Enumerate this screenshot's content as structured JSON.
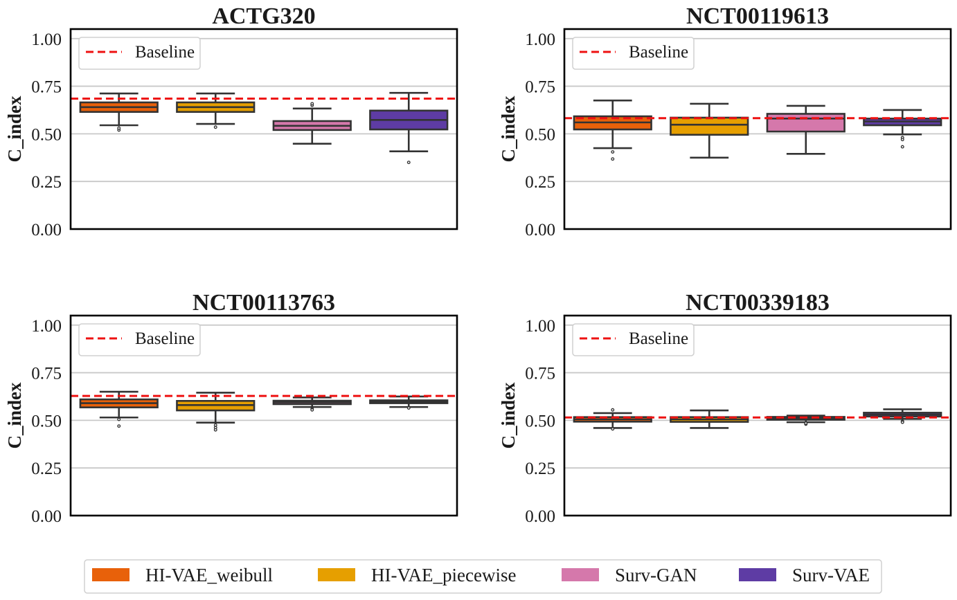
{
  "chart_data": [
    {
      "type": "box",
      "title": "ACTG320",
      "ylabel": "C_index",
      "ylim": [
        0,
        1.05
      ],
      "yticks": [
        "0.00",
        "0.25",
        "0.50",
        "0.75",
        "1.00"
      ],
      "grid": "horizontal",
      "legend": {
        "label": "Baseline",
        "placement": "top-left"
      },
      "baseline": 0.685,
      "boxes": [
        {
          "series": "HI-VAE_weibull",
          "min": 0.545,
          "q1": 0.615,
          "median": 0.64,
          "q3": 0.665,
          "max": 0.712,
          "outliers": [
            0.52,
            0.53
          ]
        },
        {
          "series": "HI-VAE_piecewise",
          "min": 0.552,
          "q1": 0.615,
          "median": 0.64,
          "q3": 0.665,
          "max": 0.712,
          "outliers": [
            0.535
          ]
        },
        {
          "series": "Surv-GAN",
          "min": 0.448,
          "q1": 0.52,
          "median": 0.542,
          "q3": 0.567,
          "max": 0.633,
          "outliers": [
            0.65,
            0.658
          ]
        },
        {
          "series": "Surv-VAE",
          "min": 0.408,
          "q1": 0.523,
          "median": 0.573,
          "q3": 0.622,
          "max": 0.715,
          "outliers": [
            0.35
          ]
        }
      ]
    },
    {
      "type": "box",
      "title": "NCT00119613",
      "ylabel": "C_index",
      "ylim": [
        0,
        1.05
      ],
      "yticks": [
        "0.00",
        "0.25",
        "0.50",
        "0.75",
        "1.00"
      ],
      "grid": "horizontal",
      "legend": {
        "label": "Baseline",
        "placement": "top-left"
      },
      "baseline": 0.582,
      "boxes": [
        {
          "series": "HI-VAE_weibull",
          "min": 0.425,
          "q1": 0.523,
          "median": 0.56,
          "q3": 0.592,
          "max": 0.675,
          "outliers": [
            0.405,
            0.368
          ]
        },
        {
          "series": "HI-VAE_piecewise",
          "min": 0.375,
          "q1": 0.495,
          "median": 0.548,
          "q3": 0.585,
          "max": 0.658,
          "outliers": []
        },
        {
          "series": "Surv-GAN",
          "min": 0.395,
          "q1": 0.512,
          "median": 0.58,
          "q3": 0.605,
          "max": 0.647,
          "outliers": []
        },
        {
          "series": "Surv-VAE",
          "min": 0.497,
          "q1": 0.545,
          "median": 0.565,
          "q3": 0.58,
          "max": 0.625,
          "outliers": [
            0.48,
            0.47,
            0.432
          ]
        }
      ]
    },
    {
      "type": "box",
      "title": "NCT00113763",
      "ylabel": "C_index",
      "ylim": [
        0,
        1.05
      ],
      "yticks": [
        "0.00",
        "0.25",
        "0.50",
        "0.75",
        "1.00"
      ],
      "grid": "horizontal",
      "legend": {
        "label": "Baseline",
        "placement": "top-left"
      },
      "baseline": 0.628,
      "boxes": [
        {
          "series": "HI-VAE_weibull",
          "min": 0.515,
          "q1": 0.568,
          "median": 0.59,
          "q3": 0.61,
          "max": 0.65,
          "outliers": [
            0.505,
            0.47
          ]
        },
        {
          "series": "HI-VAE_piecewise",
          "min": 0.488,
          "q1": 0.552,
          "median": 0.58,
          "q3": 0.602,
          "max": 0.645,
          "outliers": [
            0.475,
            0.462,
            0.45
          ]
        },
        {
          "series": "Surv-GAN",
          "min": 0.57,
          "q1": 0.585,
          "median": 0.595,
          "q3": 0.603,
          "max": 0.62,
          "outliers": [
            0.56,
            0.555
          ]
        },
        {
          "series": "Surv-VAE",
          "min": 0.57,
          "q1": 0.59,
          "median": 0.598,
          "q3": 0.605,
          "max": 0.625,
          "outliers": [
            0.565
          ]
        }
      ]
    },
    {
      "type": "box",
      "title": "NCT00339183",
      "ylabel": "C_index",
      "ylim": [
        0,
        1.05
      ],
      "yticks": [
        "0.00",
        "0.25",
        "0.50",
        "0.75",
        "1.00"
      ],
      "grid": "horizontal",
      "legend": {
        "label": "Baseline",
        "placement": "top-left"
      },
      "baseline": 0.515,
      "boxes": [
        {
          "series": "HI-VAE_weibull",
          "min": 0.46,
          "q1": 0.493,
          "median": 0.505,
          "q3": 0.517,
          "max": 0.538,
          "outliers": [
            0.555,
            0.455
          ]
        },
        {
          "series": "HI-VAE_piecewise",
          "min": 0.46,
          "q1": 0.492,
          "median": 0.505,
          "q3": 0.517,
          "max": 0.552,
          "outliers": []
        },
        {
          "series": "Surv-GAN",
          "min": 0.49,
          "q1": 0.503,
          "median": 0.51,
          "q3": 0.518,
          "max": 0.525,
          "outliers": [
            0.48,
            0.485
          ]
        },
        {
          "series": "Surv-VAE",
          "min": 0.508,
          "q1": 0.52,
          "median": 0.53,
          "q3": 0.54,
          "max": 0.558,
          "outliers": [
            0.495,
            0.49
          ]
        }
      ]
    }
  ],
  "series": [
    {
      "name": "HI-VAE_weibull",
      "color": "#e8610a"
    },
    {
      "name": "HI-VAE_piecewise",
      "color": "#e69f00"
    },
    {
      "name": "Surv-GAN",
      "color": "#d578ab"
    },
    {
      "name": "Surv-VAE",
      "color": "#5e3ca4"
    }
  ],
  "colors": {
    "baseline": "#ee1111",
    "edge": "#333333",
    "grid": "#c8c8c8",
    "frame": "#000000"
  }
}
